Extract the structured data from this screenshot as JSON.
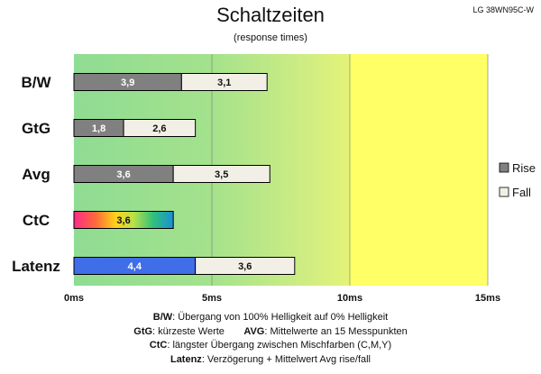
{
  "header": {
    "title": "Schaltzeiten",
    "subtitle": "(response times)",
    "model": "LG 38WN95C-W"
  },
  "legend": {
    "rise": "Rise",
    "fall": "Fall"
  },
  "notes": [
    {
      "key": "B/W",
      "text": ":  Übergang von 100% Helligkeit auf 0% Helligkeit"
    },
    {
      "key": "GtG",
      "text": ": kürzeste  Werte",
      "key2": "AVG",
      "text2": ": Mittelwerte  an 15 Messpunkten"
    },
    {
      "key": "CtC",
      "text": ": längster Übergang  zwischen Mischfarben (C,M,Y)"
    },
    {
      "key": "Latenz",
      "text": ": Verzögerung  + Mittelwert Avg rise/fall"
    }
  ],
  "colors": {
    "rise": "#808080",
    "fall": "#f2efe6",
    "latenz": "#3f6ee8",
    "bg_left": "#8fdc93",
    "bg_mid": "#d8ef83",
    "bg_right": "#ffff66"
  },
  "chart_data": {
    "type": "bar",
    "orientation": "horizontal",
    "stacked": true,
    "title": "Schaltzeiten",
    "subtitle": "(response times)",
    "categories": [
      "B/W",
      "GtG",
      "Avg",
      "CtC",
      "Latenz"
    ],
    "series": [
      {
        "name": "Rise",
        "values": [
          3.9,
          1.8,
          3.6,
          3.6,
          4.4
        ],
        "labels": [
          "3,9",
          "1,8",
          "3,6",
          "3,6",
          "4,4"
        ]
      },
      {
        "name": "Fall",
        "values": [
          3.1,
          2.6,
          3.5,
          null,
          3.6
        ],
        "labels": [
          "3,1",
          "2,6",
          "3,5",
          "",
          "3,6"
        ]
      }
    ],
    "xlim": [
      0,
      15
    ],
    "xticks": [
      0,
      5,
      10,
      15
    ],
    "xtick_labels": [
      "0ms",
      "5ms",
      "10ms",
      "15ms"
    ],
    "grid": true,
    "legend_position": "right"
  }
}
